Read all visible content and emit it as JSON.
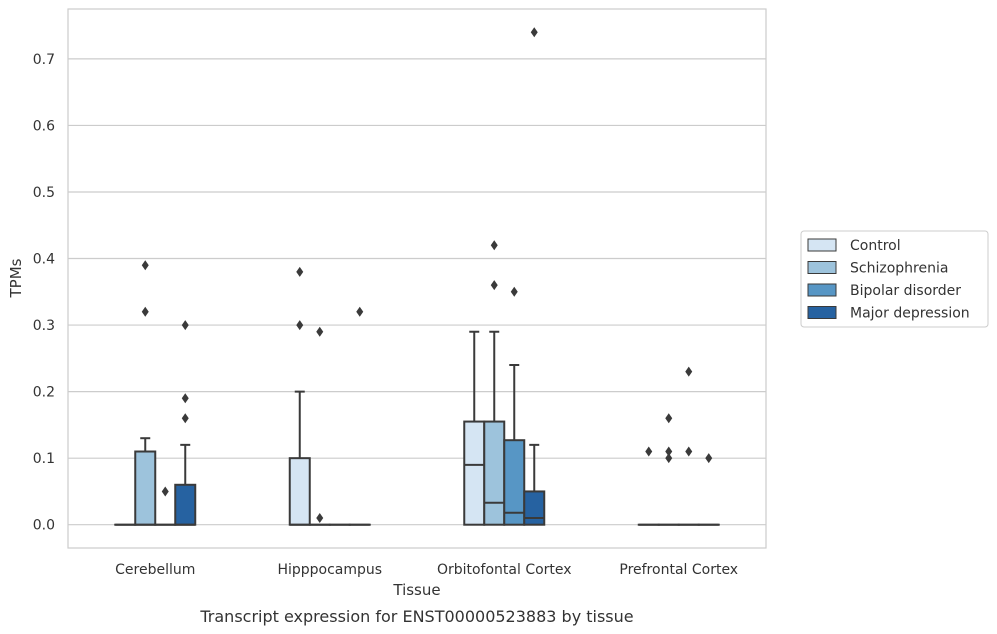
{
  "chart_data": {
    "type": "box",
    "xlabel": "Tissue",
    "ylabel": "TPMs",
    "caption": "Transcript expression for ENST00000523883 by tissue",
    "ylim": [
      -0.035,
      0.775
    ],
    "yticks": [
      0.0,
      0.1,
      0.2,
      0.3,
      0.4,
      0.5,
      0.6,
      0.7
    ],
    "ytick_labels": [
      "0.0",
      "0.1",
      "0.2",
      "0.3",
      "0.4",
      "0.5",
      "0.6",
      "0.7"
    ],
    "grid": "horizontal",
    "legend_position": "right",
    "categories": [
      "Cerebellum",
      "Hipppocampus",
      "Orbitofontal Cortex",
      "Prefrontal Cortex"
    ],
    "series": [
      {
        "name": "Control",
        "color": "#d5e5f3",
        "boxes": [
          {
            "q1": 0.0,
            "median": 0.0,
            "q3": 0.0,
            "whisker_low": 0.0,
            "whisker_high": 0.0,
            "outliers": []
          },
          {
            "q1": 0.0,
            "median": 0.0,
            "q3": 0.1,
            "whisker_low": 0.0,
            "whisker_high": 0.2,
            "outliers": [
              0.38,
              0.3
            ]
          },
          {
            "q1": 0.0,
            "median": 0.09,
            "q3": 0.155,
            "whisker_low": 0.0,
            "whisker_high": 0.29,
            "outliers": []
          },
          {
            "q1": 0.0,
            "median": 0.0,
            "q3": 0.0,
            "whisker_low": 0.0,
            "whisker_high": 0.0,
            "outliers": [
              0.11
            ]
          }
        ]
      },
      {
        "name": "Schizophrenia",
        "color": "#9dc3dc",
        "boxes": [
          {
            "q1": 0.0,
            "median": 0.0,
            "q3": 0.11,
            "whisker_low": 0.0,
            "whisker_high": 0.13,
            "outliers": [
              0.39,
              0.32
            ]
          },
          {
            "q1": 0.0,
            "median": 0.0,
            "q3": 0.0,
            "whisker_low": 0.0,
            "whisker_high": 0.0,
            "outliers": [
              0.29,
              0.01
            ]
          },
          {
            "q1": 0.0,
            "median": 0.033,
            "q3": 0.155,
            "whisker_low": 0.0,
            "whisker_high": 0.29,
            "outliers": [
              0.42,
              0.36
            ]
          },
          {
            "q1": 0.0,
            "median": 0.0,
            "q3": 0.0,
            "whisker_low": 0.0,
            "whisker_high": 0.0,
            "outliers": [
              0.16,
              0.11,
              0.1
            ]
          }
        ]
      },
      {
        "name": "Bipolar disorder",
        "color": "#5796c5",
        "boxes": [
          {
            "q1": 0.0,
            "median": 0.0,
            "q3": 0.0,
            "whisker_low": 0.0,
            "whisker_high": 0.0,
            "outliers": [
              0.05
            ]
          },
          {
            "q1": 0.0,
            "median": 0.0,
            "q3": 0.0,
            "whisker_low": 0.0,
            "whisker_high": 0.0,
            "outliers": []
          },
          {
            "q1": 0.0,
            "median": 0.018,
            "q3": 0.127,
            "whisker_low": 0.0,
            "whisker_high": 0.24,
            "outliers": [
              0.35
            ]
          },
          {
            "q1": 0.0,
            "median": 0.0,
            "q3": 0.0,
            "whisker_low": 0.0,
            "whisker_high": 0.0,
            "outliers": [
              0.23,
              0.11
            ]
          }
        ]
      },
      {
        "name": "Major depression",
        "color": "#2662a1",
        "boxes": [
          {
            "q1": 0.0,
            "median": 0.0,
            "q3": 0.06,
            "whisker_low": 0.0,
            "whisker_high": 0.12,
            "outliers": [
              0.3,
              0.19,
              0.16
            ]
          },
          {
            "q1": 0.0,
            "median": 0.0,
            "q3": 0.0,
            "whisker_low": 0.0,
            "whisker_high": 0.0,
            "outliers": [
              0.32
            ]
          },
          {
            "q1": 0.0,
            "median": 0.01,
            "q3": 0.05,
            "whisker_low": 0.0,
            "whisker_high": 0.12,
            "outliers": [
              0.74
            ]
          },
          {
            "q1": 0.0,
            "median": 0.0,
            "q3": 0.0,
            "whisker_low": 0.0,
            "whisker_high": 0.0,
            "outliers": [
              0.1
            ]
          }
        ]
      }
    ]
  }
}
